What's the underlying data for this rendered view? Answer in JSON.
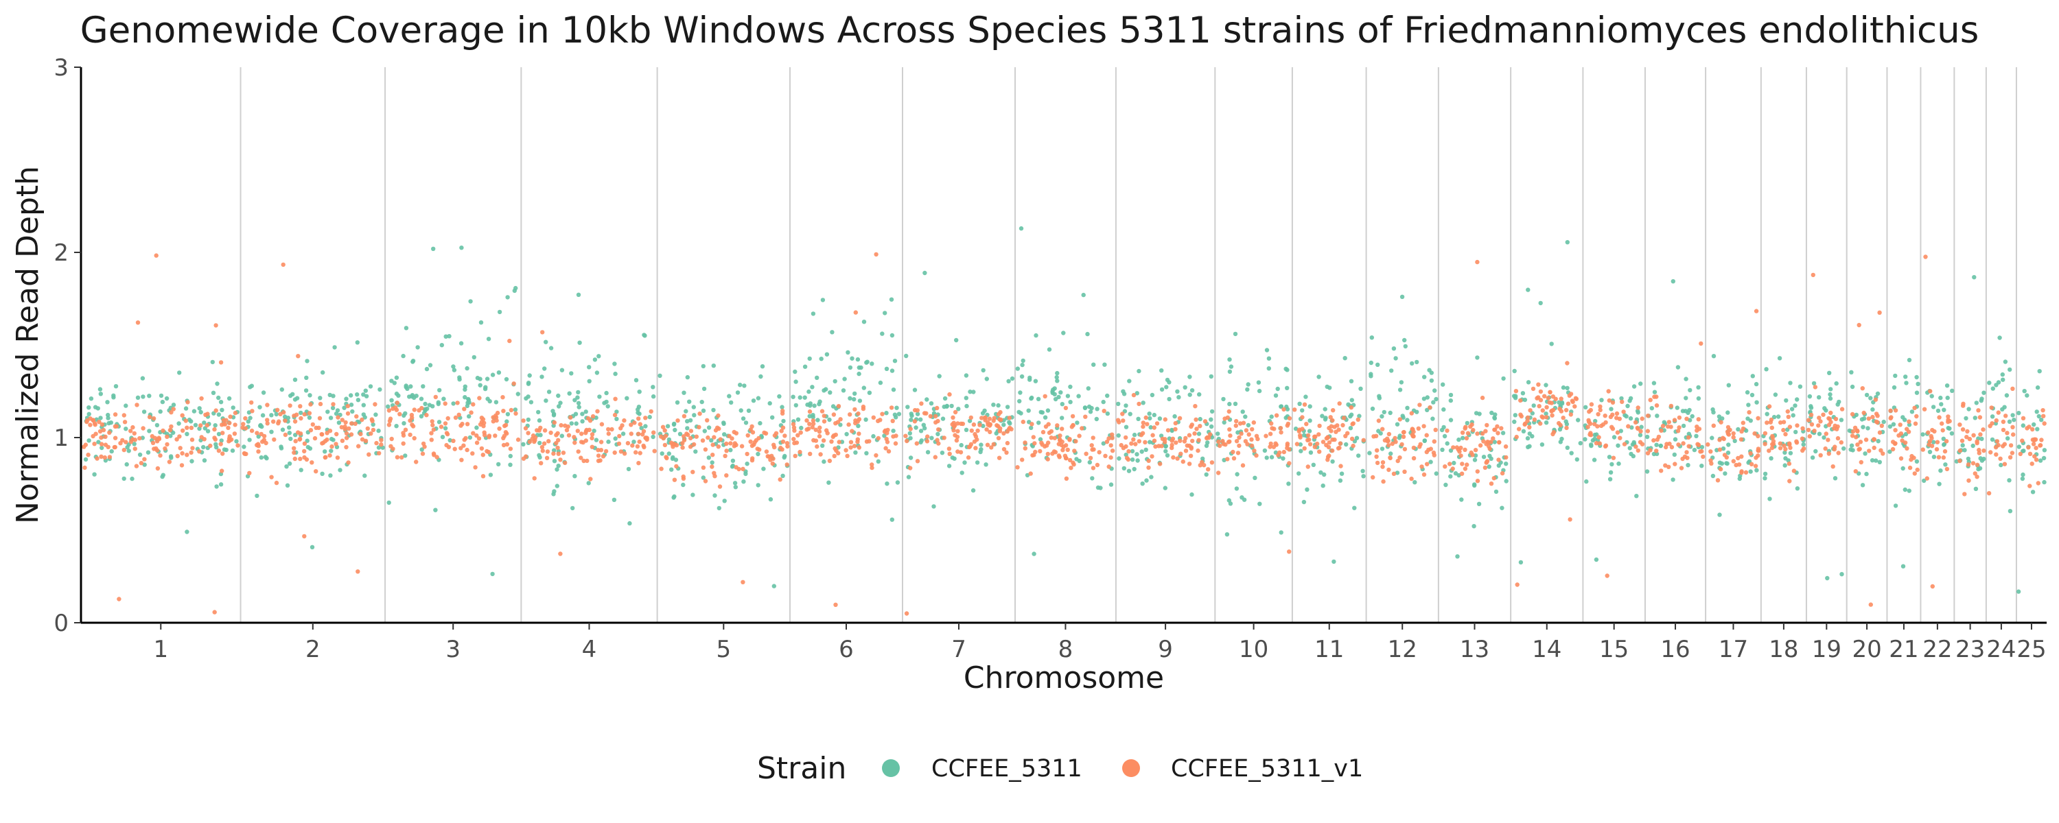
{
  "chart_data": {
    "type": "scatter",
    "title": "Genomewide Coverage in 10kb Windows Across Species 5311 strains of Friedmanniomyces endolithicus",
    "xlabel": "Chromosome",
    "ylabel": "Normalized Read Depth",
    "ylim": [
      0,
      3
    ],
    "y_ticks": [
      "0",
      "1",
      "2",
      "3"
    ],
    "grid": "vertical lines between chromosomes",
    "legend": {
      "title": "Strain",
      "position": "bottom",
      "entries": [
        "CCFEE_5311",
        "CCFEE_5311_v1"
      ]
    },
    "chromosomes": [
      {
        "label": "1",
        "windows": 475
      },
      {
        "label": "2",
        "windows": 430
      },
      {
        "label": "3",
        "windows": 405
      },
      {
        "label": "4",
        "windows": 405
      },
      {
        "label": "5",
        "windows": 395
      },
      {
        "label": "6",
        "windows": 335
      },
      {
        "label": "7",
        "windows": 335
      },
      {
        "label": "8",
        "windows": 300
      },
      {
        "label": "9",
        "windows": 295
      },
      {
        "label": "10",
        "windows": 230
      },
      {
        "label": "11",
        "windows": 220
      },
      {
        "label": "12",
        "windows": 215
      },
      {
        "label": "13",
        "windows": 215
      },
      {
        "label": "14",
        "windows": 215
      },
      {
        "label": "15",
        "windows": 185
      },
      {
        "label": "16",
        "windows": 180
      },
      {
        "label": "17",
        "windows": 165
      },
      {
        "label": "18",
        "windows": 135
      },
      {
        "label": "19",
        "windows": 120
      },
      {
        "label": "20",
        "windows": 120
      },
      {
        "label": "21",
        "windows": 100
      },
      {
        "label": "22",
        "windows": 100
      },
      {
        "label": "23",
        "windows": 95
      },
      {
        "label": "24",
        "windows": 90
      },
      {
        "label": "25",
        "windows": 90
      }
    ],
    "series": [
      {
        "name": "CCFEE_5311",
        "color": "#66c2a5",
        "profile": [
          {
            "chrom": "1",
            "mean": 1.08,
            "spread": 0.14
          },
          {
            "chrom": "2",
            "mean": 1.08,
            "spread": 0.16
          },
          {
            "chrom": "3",
            "mean": 1.2,
            "spread": 0.18
          },
          {
            "chrom": "4",
            "mean": 1.12,
            "spread": 0.2
          },
          {
            "chrom": "5",
            "mean": 0.98,
            "spread": 0.18
          },
          {
            "chrom": "6",
            "mean": 1.15,
            "spread": 0.25
          },
          {
            "chrom": "7",
            "mean": 1.08,
            "spread": 0.14
          },
          {
            "chrom": "8",
            "mean": 1.15,
            "spread": 0.2
          },
          {
            "chrom": "9",
            "mean": 1.05,
            "spread": 0.17
          },
          {
            "chrom": "10",
            "mean": 1.05,
            "spread": 0.22
          },
          {
            "chrom": "11",
            "mean": 1.05,
            "spread": 0.15
          },
          {
            "chrom": "12",
            "mean": 1.12,
            "spread": 0.22
          },
          {
            "chrom": "13",
            "mean": 0.95,
            "spread": 0.18
          },
          {
            "chrom": "14",
            "mean": 1.1,
            "spread": 0.12
          },
          {
            "chrom": "15",
            "mean": 1.05,
            "spread": 0.15
          },
          {
            "chrom": "16",
            "mean": 1.02,
            "spread": 0.15
          },
          {
            "chrom": "17",
            "mean": 1.0,
            "spread": 0.18
          },
          {
            "chrom": "18",
            "mean": 1.05,
            "spread": 0.15
          },
          {
            "chrom": "19",
            "mean": 1.08,
            "spread": 0.16
          },
          {
            "chrom": "20",
            "mean": 1.05,
            "spread": 0.15
          },
          {
            "chrom": "21",
            "mean": 1.05,
            "spread": 0.22
          },
          {
            "chrom": "22",
            "mean": 1.05,
            "spread": 0.15
          },
          {
            "chrom": "23",
            "mean": 1.0,
            "spread": 0.18
          },
          {
            "chrom": "24",
            "mean": 1.05,
            "spread": 0.2
          },
          {
            "chrom": "25",
            "mean": 1.05,
            "spread": 0.18
          }
        ]
      },
      {
        "name": "CCFEE_5311_v1",
        "color": "#fc8d62",
        "profile": [
          {
            "chrom": "1",
            "mean": 1.0,
            "spread": 0.08
          },
          {
            "chrom": "2",
            "mean": 1.02,
            "spread": 0.09
          },
          {
            "chrom": "3",
            "mean": 1.05,
            "spread": 0.09
          },
          {
            "chrom": "4",
            "mean": 1.0,
            "spread": 0.08
          },
          {
            "chrom": "5",
            "mean": 0.97,
            "spread": 0.09
          },
          {
            "chrom": "6",
            "mean": 1.02,
            "spread": 0.08
          },
          {
            "chrom": "7",
            "mean": 1.02,
            "spread": 0.08
          },
          {
            "chrom": "8",
            "mean": 0.97,
            "spread": 0.09
          },
          {
            "chrom": "9",
            "mean": 1.0,
            "spread": 0.08
          },
          {
            "chrom": "10",
            "mean": 1.0,
            "spread": 0.08
          },
          {
            "chrom": "11",
            "mean": 1.0,
            "spread": 0.08
          },
          {
            "chrom": "12",
            "mean": 0.95,
            "spread": 0.1
          },
          {
            "chrom": "13",
            "mean": 0.95,
            "spread": 0.09
          },
          {
            "chrom": "14",
            "mean": 1.15,
            "spread": 0.08
          },
          {
            "chrom": "15",
            "mean": 1.08,
            "spread": 0.08
          },
          {
            "chrom": "16",
            "mean": 1.0,
            "spread": 0.09
          },
          {
            "chrom": "17",
            "mean": 0.95,
            "spread": 0.09
          },
          {
            "chrom": "18",
            "mean": 1.0,
            "spread": 0.09
          },
          {
            "chrom": "19",
            "mean": 1.05,
            "spread": 0.08
          },
          {
            "chrom": "20",
            "mean": 1.05,
            "spread": 0.08
          },
          {
            "chrom": "21",
            "mean": 1.0,
            "spread": 0.1
          },
          {
            "chrom": "22",
            "mean": 1.02,
            "spread": 0.1
          },
          {
            "chrom": "23",
            "mean": 0.95,
            "spread": 0.12
          },
          {
            "chrom": "24",
            "mean": 1.0,
            "spread": 0.12
          },
          {
            "chrom": "25",
            "mean": 1.0,
            "spread": 0.12
          }
        ]
      }
    ]
  }
}
